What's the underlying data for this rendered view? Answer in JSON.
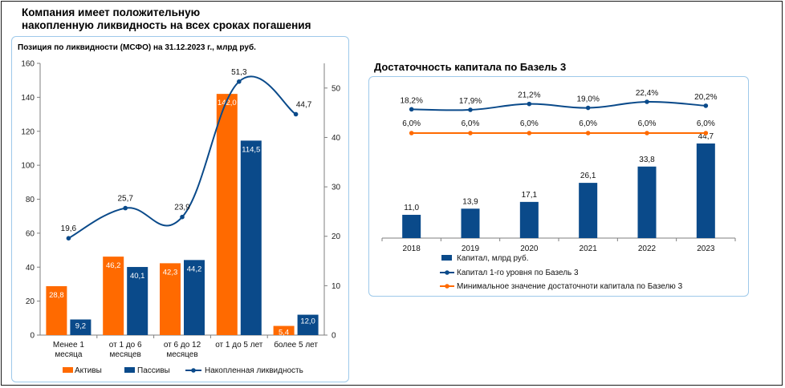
{
  "header": {
    "title_line1": "Компания имеет положительную",
    "title_line2": "накопленную ликвидность на всех сроках погашения"
  },
  "colors": {
    "orange": "#ff6a00",
    "blue": "#0a4a8a",
    "line": "#0a4a8a",
    "panel_border": "#9ec9ea"
  },
  "chart_data": [
    {
      "type": "bar",
      "title": "Позиция по ликвидности (МСФО) на 31.12.2023 г., млрд руб.",
      "categories": [
        [
          "Менее 1",
          "месяца"
        ],
        [
          "от 1 до 6",
          "месяцев"
        ],
        [
          "от 6 до 12",
          "месяцев"
        ],
        [
          "от 1 до 5 лет"
        ],
        [
          "более 5 лет"
        ]
      ],
      "series": [
        {
          "name": "Активы",
          "values": [
            28.8,
            46.2,
            42.3,
            142.0,
            5.4
          ],
          "labels": [
            "28,8",
            "46,2",
            "42,3",
            "142,0",
            "5,4"
          ],
          "color": "#ff6a00",
          "axis": "left"
        },
        {
          "name": "Пассивы",
          "values": [
            9.2,
            40.1,
            44.2,
            114.5,
            12.0
          ],
          "labels": [
            "9,2",
            "40,1",
            "44,2",
            "114,5",
            "12,0"
          ],
          "color": "#0a4a8a",
          "axis": "left"
        },
        {
          "name": "Накопленная ликвидность",
          "values": [
            19.6,
            25.7,
            23.9,
            51.3,
            44.7
          ],
          "labels": [
            "19,6",
            "25,7",
            "23,9",
            "51,3",
            "44,7"
          ],
          "color": "#0a4a8a",
          "axis": "right",
          "type": "line"
        }
      ],
      "left_axis": {
        "ylim": [
          0,
          160
        ],
        "ticks": [
          0,
          20,
          40,
          60,
          80,
          100,
          120,
          140,
          160
        ]
      },
      "right_axis": {
        "ylim": [
          0,
          55
        ],
        "ticks": [
          0,
          10,
          20,
          30,
          40,
          50
        ]
      },
      "legend": "bottom"
    },
    {
      "type": "bar",
      "title": "Достаточность капитала по Базель 3",
      "categories": [
        "2018",
        "2019",
        "2020",
        "2021",
        "2022",
        "2023"
      ],
      "series": [
        {
          "name": "Капитал, млрд руб.",
          "values": [
            11.0,
            13.9,
            17.1,
            26.1,
            33.8,
            44.7
          ],
          "labels": [
            "11,0",
            "13,9",
            "17,1",
            "26,1",
            "33,8",
            "44,7"
          ],
          "color": "#0a4a8a"
        },
        {
          "name": "Капитал 1-го уровня по Базель 3",
          "values": [
            18.2,
            17.9,
            21.2,
            19.0,
            22.4,
            20.2
          ],
          "labels": [
            "18,2%",
            "17,9%",
            "21,2%",
            "19,0%",
            "22,4%",
            "20,2%"
          ],
          "color": "#0a4a8a",
          "type": "line"
        },
        {
          "name": "Минимальное значение достаточноти капитала по Базелю 3",
          "values": [
            6.0,
            6.0,
            6.0,
            6.0,
            6.0,
            6.0
          ],
          "labels": [
            "6,0%",
            "6,0%",
            "6,0%",
            "6,0%",
            "6,0%",
            "6,0%"
          ],
          "color": "#ff6a00",
          "type": "line"
        }
      ],
      "legend": "bottom"
    }
  ]
}
